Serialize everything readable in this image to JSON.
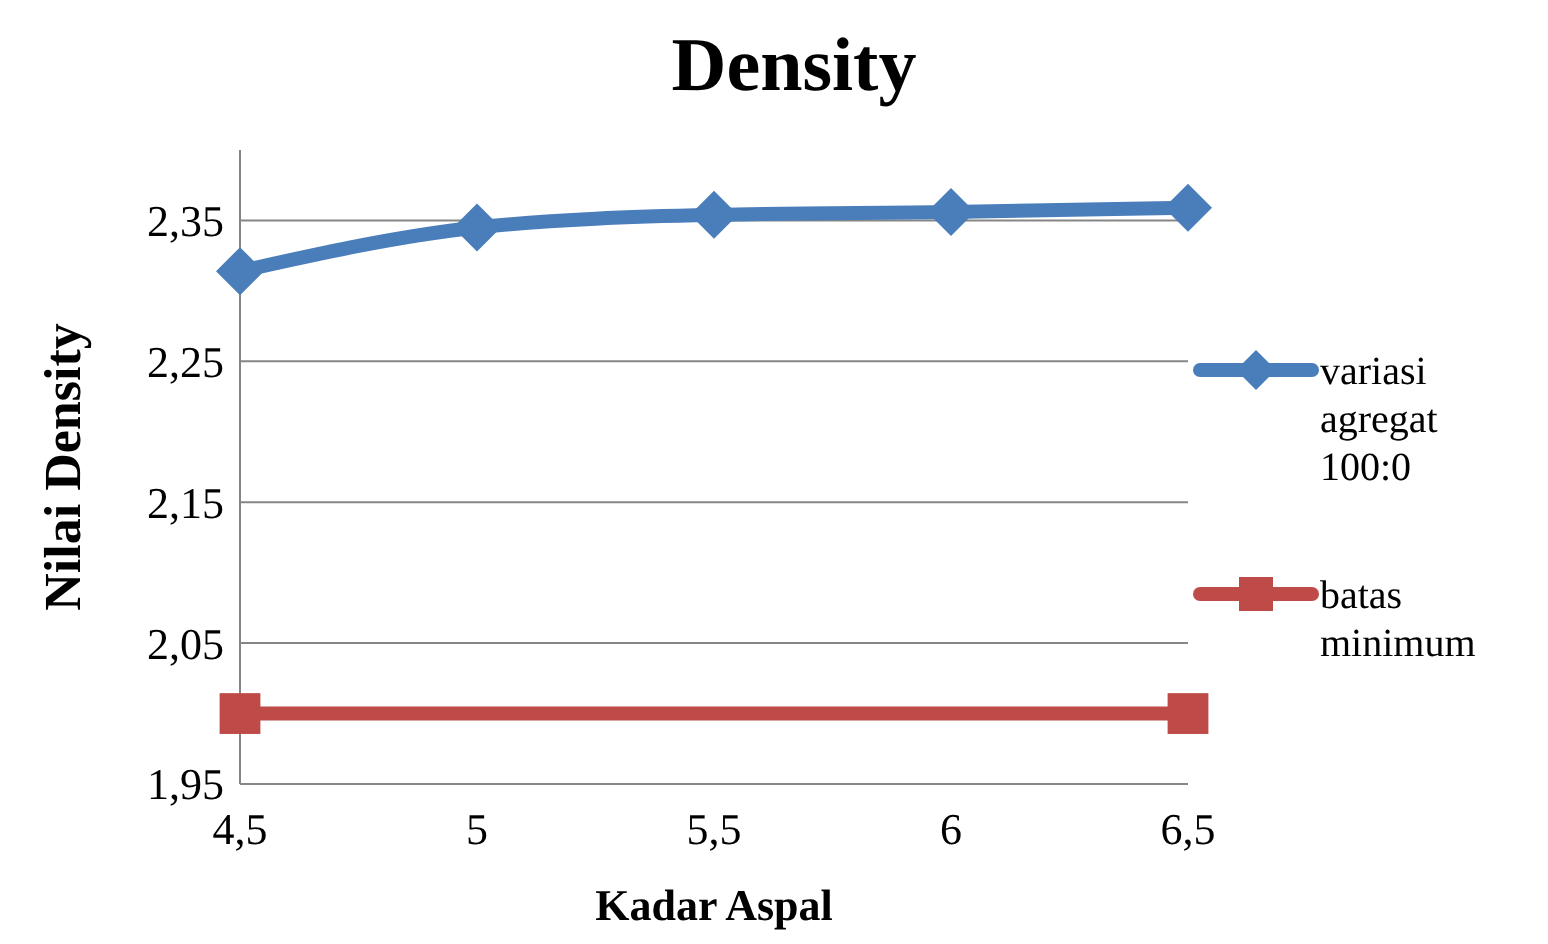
{
  "chart_data": {
    "type": "line",
    "title": "Density",
    "xlabel": "Kadar Aspal",
    "ylabel": "Nilai Density",
    "x": [
      4.5,
      5,
      5.5,
      6,
      6.5
    ],
    "xlim": [
      4.5,
      6.5
    ],
    "xticks": [
      {
        "value": 4.5,
        "label": "4,5"
      },
      5,
      {
        "value": 5.5,
        "label": "5,5"
      },
      6,
      {
        "value": 6.5,
        "label": "6,5"
      }
    ],
    "ylim": [
      1.95,
      2.4
    ],
    "yticks": [
      {
        "value": 1.95,
        "label": "1,95"
      },
      {
        "value": 2.05,
        "label": "2,05"
      },
      {
        "value": 2.15,
        "label": "2,15"
      },
      {
        "value": 2.25,
        "label": "2,25"
      },
      {
        "value": 2.35,
        "label": "2,35"
      }
    ],
    "grid": "y",
    "legend": "right",
    "series": [
      {
        "name": "variasi agregat 100:0",
        "color": "#4a7ebb",
        "marker": "diamond",
        "values": [
          2.314,
          2.345,
          2.354,
          2.356,
          2.359
        ]
      },
      {
        "name": "batas minimum",
        "color": "#be4b48",
        "marker": "square",
        "x": [
          4.5,
          6.5
        ],
        "values": [
          2.0,
          2.0
        ]
      }
    ]
  }
}
